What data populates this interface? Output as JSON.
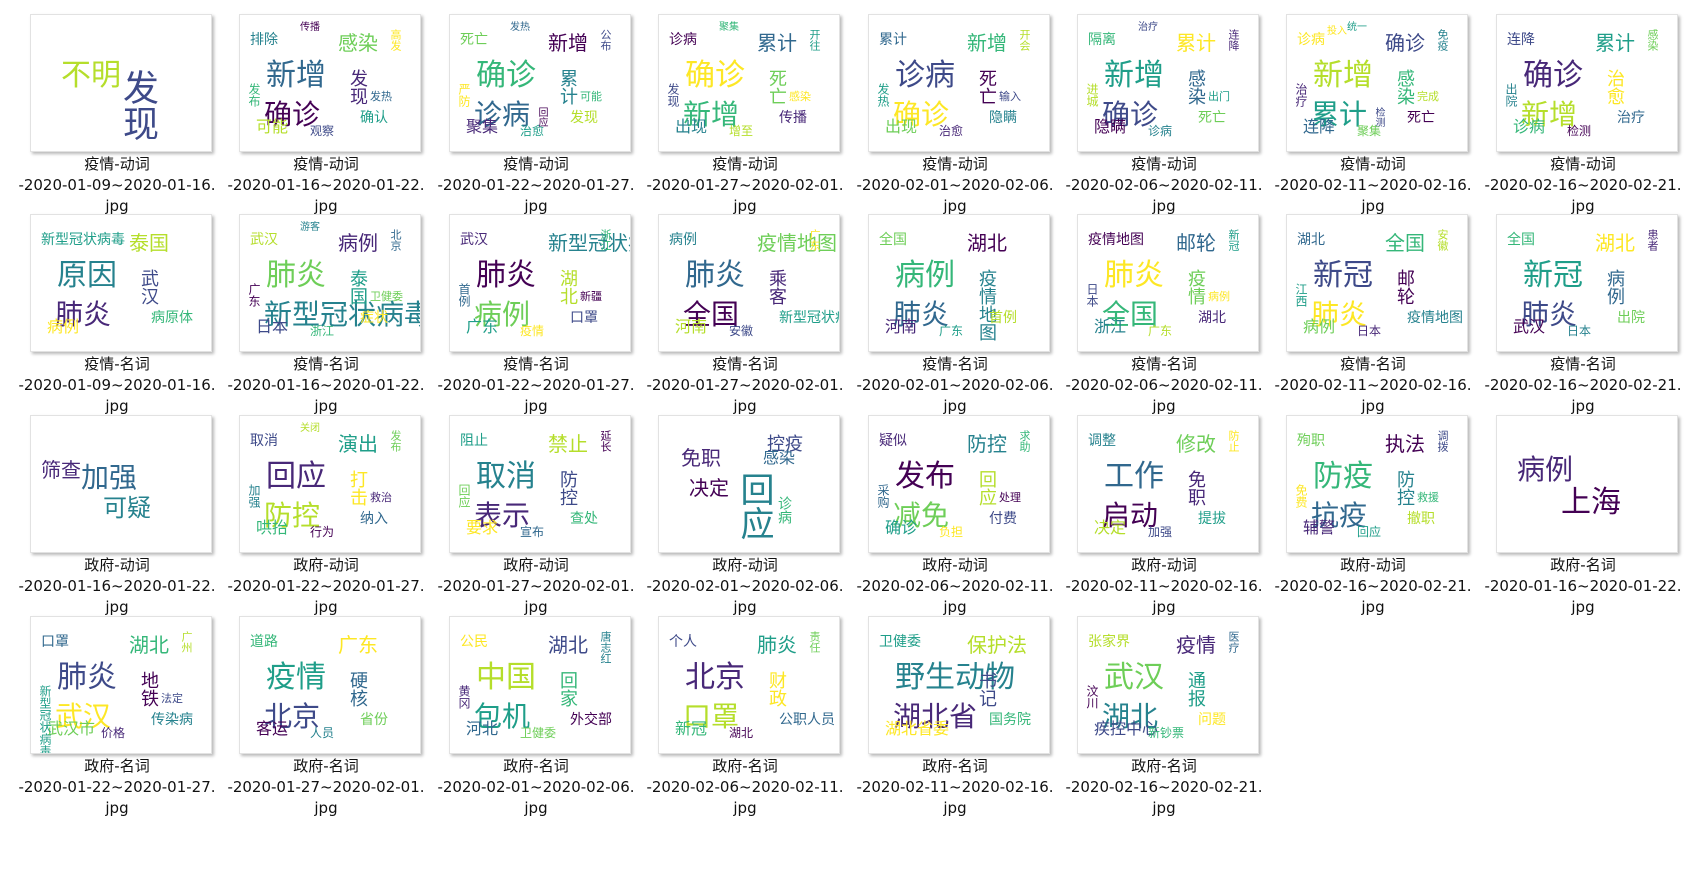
{
  "colors": {
    "palette": [
      "#440154",
      "#482878",
      "#3e4a89",
      "#31688e",
      "#26828e",
      "#1f9e89",
      "#35b779",
      "#6ece58",
      "#b5de2b",
      "#fde725"
    ]
  },
  "files": [
    {
      "caption": [
        "疫情-动词",
        "-2020-01-09~2020-01-16.",
        "jpg"
      ],
      "words": [
        "不明",
        "发现"
      ]
    },
    {
      "caption": [
        "疫情-动词",
        "-2020-01-16~2020-01-22.",
        "jpg"
      ],
      "words": [
        "新增",
        "确诊",
        "感染",
        "排除",
        "发现",
        "可能",
        "确认",
        "观察",
        "高发",
        "发布",
        "发热",
        "传播"
      ]
    },
    {
      "caption": [
        "疫情-动词",
        "-2020-01-22~2020-01-27.",
        "jpg"
      ],
      "words": [
        "确诊",
        "诊病",
        "新增",
        "死亡",
        "累计",
        "聚集",
        "发现",
        "治愈",
        "公布",
        "严防",
        "可能",
        "发热",
        "回应"
      ]
    },
    {
      "caption": [
        "疫情-动词",
        "-2020-01-27~2020-02-01.",
        "jpg"
      ],
      "words": [
        "确诊",
        "新增",
        "累计",
        "诊病",
        "死亡",
        "出现",
        "传播",
        "增至",
        "开往",
        "发现",
        "感染",
        "聚集"
      ]
    },
    {
      "caption": [
        "疫情-动词",
        "-2020-02-01~2020-02-06.",
        "jpg"
      ],
      "words": [
        "诊病",
        "确诊",
        "新增",
        "累计",
        "死亡",
        "出现",
        "隐瞒",
        "治愈",
        "开会",
        "发热",
        "输入"
      ]
    },
    {
      "caption": [
        "疫情-动词",
        "-2020-02-06~2020-02-11.",
        "jpg"
      ],
      "words": [
        "新增",
        "确诊",
        "累计",
        "隔离",
        "感染",
        "隐瞒",
        "死亡",
        "诊病",
        "连降",
        "进城",
        "出门",
        "治疗"
      ]
    },
    {
      "caption": [
        "疫情-动词",
        "-2020-02-11~2020-02-16.",
        "jpg"
      ],
      "words": [
        "新增",
        "累计",
        "确诊",
        "诊病",
        "感染",
        "连降",
        "死亡",
        "聚集",
        "免疫",
        "治疗",
        "完成",
        "统一",
        "检测",
        "投入"
      ]
    },
    {
      "caption": [
        "疫情-动词",
        "-2020-02-16~2020-02-21.",
        "jpg"
      ],
      "words": [
        "确诊",
        "新增",
        "累计",
        "连降",
        "治愈",
        "诊病",
        "治疗",
        "检测",
        "感染",
        "出院"
      ]
    },
    {
      "caption": [
        "疫情-名词",
        "-2020-01-09~2020-01-16.",
        "jpg"
      ],
      "words": [
        "原因",
        "肺炎",
        "泰国",
        "新型冠状病毒",
        "武汉",
        "病例",
        "病原体"
      ]
    },
    {
      "caption": [
        "疫情-名词",
        "-2020-01-16~2020-01-22.",
        "jpg"
      ],
      "words": [
        "肺炎",
        "新型冠状病毒",
        "病例",
        "武汉",
        "泰国",
        "日本",
        "症状",
        "浙江",
        "北京",
        "广东",
        "卫健委",
        "游客"
      ]
    },
    {
      "caption": [
        "疫情-名词",
        "-2020-01-22~2020-01-27.",
        "jpg"
      ],
      "words": [
        "肺炎",
        "病例",
        "新型冠状病毒",
        "武汉",
        "湖北",
        "广东",
        "口罩",
        "疫情",
        "浙江",
        "首例",
        "新疆"
      ]
    },
    {
      "caption": [
        "疫情-名词",
        "-2020-01-27~2020-02-01.",
        "jpg"
      ],
      "words": [
        "肺炎",
        "全国",
        "疫情地图",
        "病例",
        "乘客",
        "河南",
        "新型冠状病毒",
        "安徽",
        "广东"
      ]
    },
    {
      "caption": [
        "疫情-名词",
        "-2020-02-01~2020-02-06.",
        "jpg"
      ],
      "words": [
        "病例",
        "肺炎",
        "湖北",
        "全国",
        "疫情地图",
        "河南",
        "首例",
        "广东"
      ]
    },
    {
      "caption": [
        "疫情-名词",
        "-2020-02-06~2020-02-11.",
        "jpg"
      ],
      "words": [
        "肺炎",
        "全国",
        "邮轮",
        "疫情地图",
        "疫情",
        "浙江",
        "湖北",
        "广东",
        "新冠",
        "日本",
        "病例"
      ]
    },
    {
      "caption": [
        "疫情-名词",
        "-2020-02-11~2020-02-16.",
        "jpg"
      ],
      "words": [
        "新冠",
        "肺炎",
        "全国",
        "湖北",
        "邮轮",
        "病例",
        "疫情地图",
        "日本",
        "安徽",
        "江西"
      ]
    },
    {
      "caption": [
        "疫情-名词",
        "-2020-02-16~2020-02-21.",
        "jpg"
      ],
      "words": [
        "新冠",
        "肺炎",
        "湖北",
        "全国",
        "病例",
        "武汉",
        "出院",
        "日本",
        "患者"
      ]
    },
    {
      "caption": [
        "政府-动词",
        "-2020-01-16~2020-01-22.",
        "jpg"
      ],
      "words": [
        "筛查",
        "加强",
        "可疑"
      ]
    },
    {
      "caption": [
        "政府-动词",
        "-2020-01-22~2020-01-27.",
        "jpg"
      ],
      "words": [
        "回应",
        "防控",
        "演出",
        "取消",
        "打击",
        "哄抬",
        "纳入",
        "行为",
        "发布",
        "加强",
        "救治",
        "关闭"
      ]
    },
    {
      "caption": [
        "政府-动词",
        "-2020-01-27~2020-02-01.",
        "jpg"
      ],
      "words": [
        "取消",
        "表示",
        "禁止",
        "阻止",
        "防控",
        "要求",
        "查处",
        "宣布",
        "延长",
        "回应"
      ]
    },
    {
      "caption": [
        "政府-动词",
        "-2020-02-01~2020-02-06.",
        "jpg"
      ],
      "words": [
        "免职",
        "决定",
        "回应",
        "控疫",
        "感染",
        "诊病"
      ]
    },
    {
      "caption": [
        "政府-动词",
        "-2020-02-06~2020-02-11.",
        "jpg"
      ],
      "words": [
        "发布",
        "减免",
        "防控",
        "疑似",
        "回应",
        "确诊",
        "付费",
        "负担",
        "求助",
        "采购",
        "处理"
      ]
    },
    {
      "caption": [
        "政府-动词",
        "-2020-02-11~2020-02-16.",
        "jpg"
      ],
      "words": [
        "工作",
        "启动",
        "修改",
        "调整",
        "免职",
        "决定",
        "提拔",
        "加强",
        "防止"
      ]
    },
    {
      "caption": [
        "政府-动词",
        "-2020-02-16~2020-02-21.",
        "jpg"
      ],
      "words": [
        "防疫",
        "抗疫",
        "执法",
        "殉职",
        "防控",
        "辅警",
        "撤职",
        "回应",
        "调拨",
        "免费",
        "救援"
      ]
    },
    {
      "caption": [
        "政府-名词",
        "-2020-01-16~2020-01-22.",
        "jpg"
      ],
      "words": [
        "病例",
        "上海"
      ]
    },
    {
      "caption": [
        "政府-名词",
        "-2020-01-22~2020-01-27.",
        "jpg"
      ],
      "words": [
        "肺炎",
        "武汉",
        "湖北",
        "口罩",
        "地铁",
        "武汉市",
        "传染病",
        "价格",
        "广州",
        "新型冠状病毒",
        "法定"
      ]
    },
    {
      "caption": [
        "政府-名词",
        "-2020-01-27~2020-02-01.",
        "jpg"
      ],
      "words": [
        "疫情",
        "北京",
        "广东",
        "道路",
        "硬核",
        "客运",
        "省份",
        "人员"
      ]
    },
    {
      "caption": [
        "政府-名词",
        "-2020-02-01~2020-02-06.",
        "jpg"
      ],
      "words": [
        "中国",
        "包机",
        "湖北",
        "公民",
        "回家",
        "河北",
        "外交部",
        "卫健委",
        "唐志红",
        "黄冈"
      ]
    },
    {
      "caption": [
        "政府-名词",
        "-2020-02-06~2020-02-11.",
        "jpg"
      ],
      "words": [
        "北京",
        "口罩",
        "肺炎",
        "个人",
        "财政",
        "新冠",
        "公职人员",
        "湖北",
        "责任"
      ]
    },
    {
      "caption": [
        "政府-名词",
        "-2020-02-11~2020-02-16.",
        "jpg"
      ],
      "words": [
        "野生动物",
        "湖北省",
        "保护法",
        "卫健委",
        "书记",
        "湖北省委",
        "国务院"
      ]
    },
    {
      "caption": [
        "政府-名词",
        "-2020-02-16~2020-02-21.",
        "jpg"
      ],
      "words": [
        "武汉",
        "湖北",
        "疫情",
        "张家界",
        "通报",
        "疾控中心",
        "问题",
        "新钞票",
        "医疗",
        "汶川"
      ]
    }
  ]
}
